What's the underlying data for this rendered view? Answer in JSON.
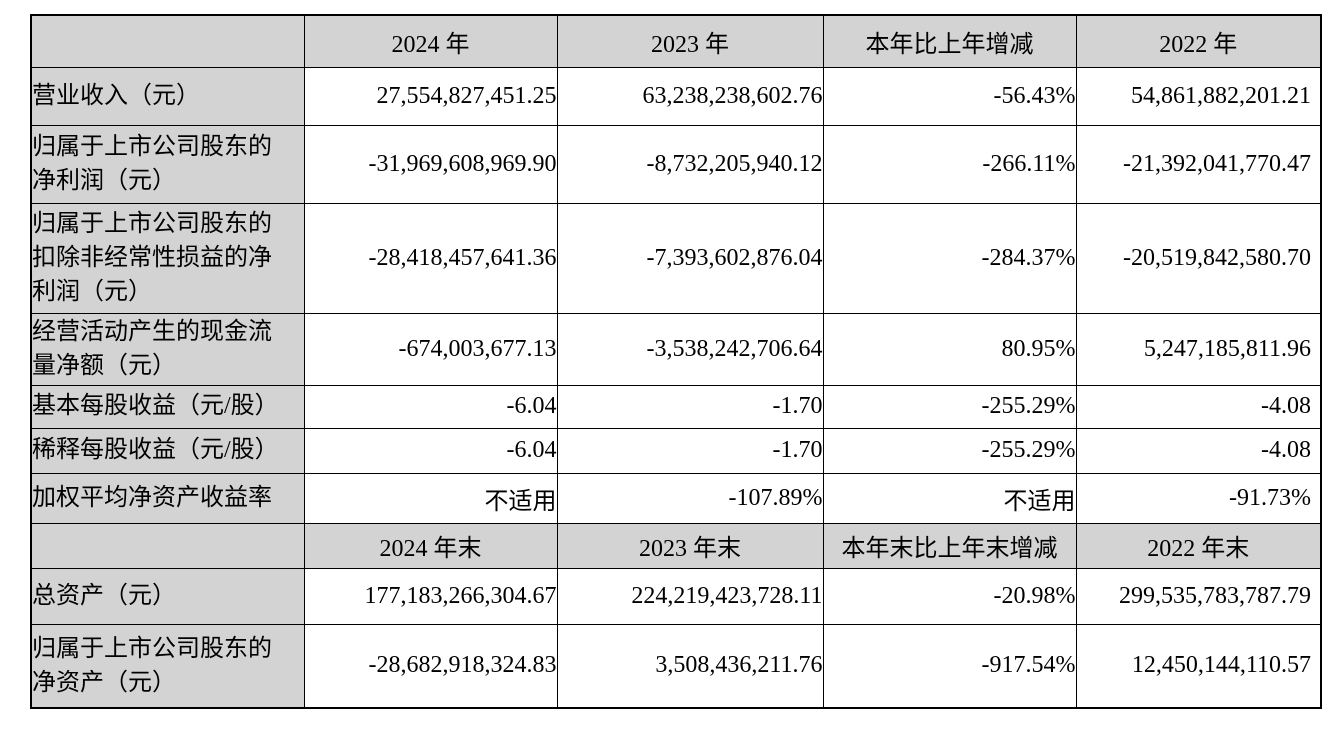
{
  "colors": {
    "header_bg": "#d3d3d3",
    "label_bg": "#d3d3d3",
    "border": "#000000",
    "page_bg": "#ffffff"
  },
  "table": {
    "rows": [
      {
        "type": "header",
        "cells": [
          "",
          "2024 年",
          "2023 年",
          "本年比上年增减",
          "2022 年"
        ]
      },
      {
        "type": "data",
        "cells": [
          "营业收入（元）",
          "27,554,827,451.25",
          "63,238,238,602.76",
          "-56.43%",
          "54,861,882,201.21"
        ]
      },
      {
        "type": "data",
        "cells": [
          "归属于上市公司股东的\n净利润（元）",
          "-31,969,608,969.90",
          "-8,732,205,940.12",
          "-266.11%",
          "-21,392,041,770.47"
        ]
      },
      {
        "type": "data",
        "cells": [
          "归属于上市公司股东的\n扣除非经常性损益的净\n利润（元）",
          "-28,418,457,641.36",
          "-7,393,602,876.04",
          "-284.37%",
          "-20,519,842,580.70"
        ]
      },
      {
        "type": "data",
        "cells": [
          "经营活动产生的现金流\n量净额（元）",
          "-674,003,677.13",
          "-3,538,242,706.64",
          "80.95%",
          "5,247,185,811.96"
        ]
      },
      {
        "type": "data",
        "cells": [
          "基本每股收益（元/股）",
          "-6.04",
          "-1.70",
          "-255.29%",
          "-4.08"
        ]
      },
      {
        "type": "data",
        "cells": [
          "稀释每股收益（元/股）",
          "-6.04",
          "-1.70",
          "-255.29%",
          "-4.08"
        ]
      },
      {
        "type": "data",
        "cells": [
          "加权平均净资产收益率",
          "不适用",
          "-107.89%",
          "不适用",
          "-91.73%"
        ]
      },
      {
        "type": "header",
        "cells": [
          "",
          "2024 年末",
          "2023 年末",
          "本年末比上年末增减",
          "2022 年末"
        ]
      },
      {
        "type": "data",
        "cells": [
          "总资产（元）",
          "177,183,266,304.67",
          "224,219,423,728.11",
          "-20.98%",
          "299,535,783,787.79"
        ]
      },
      {
        "type": "data",
        "cells": [
          "归属于上市公司股东的\n净资产（元）",
          "-28,682,918,324.83",
          "3,508,436,211.76",
          "-917.54%",
          "12,450,144,110.57"
        ]
      }
    ]
  }
}
